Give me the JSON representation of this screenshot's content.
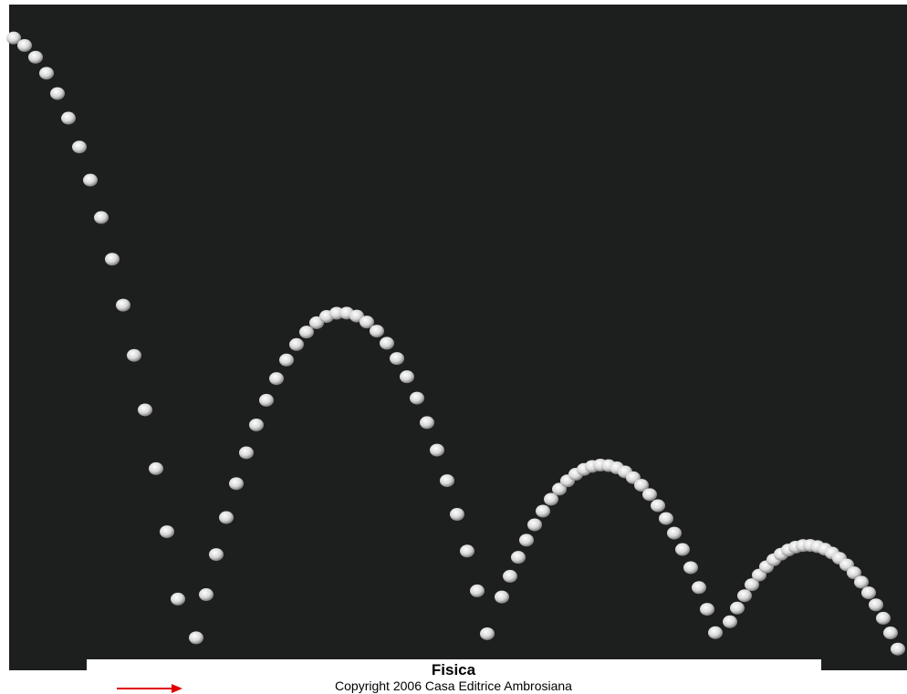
{
  "caption": {
    "title": "Fisica",
    "copyright": "Copyright 2006 Casa Editrice Ambrosiana"
  }
}
